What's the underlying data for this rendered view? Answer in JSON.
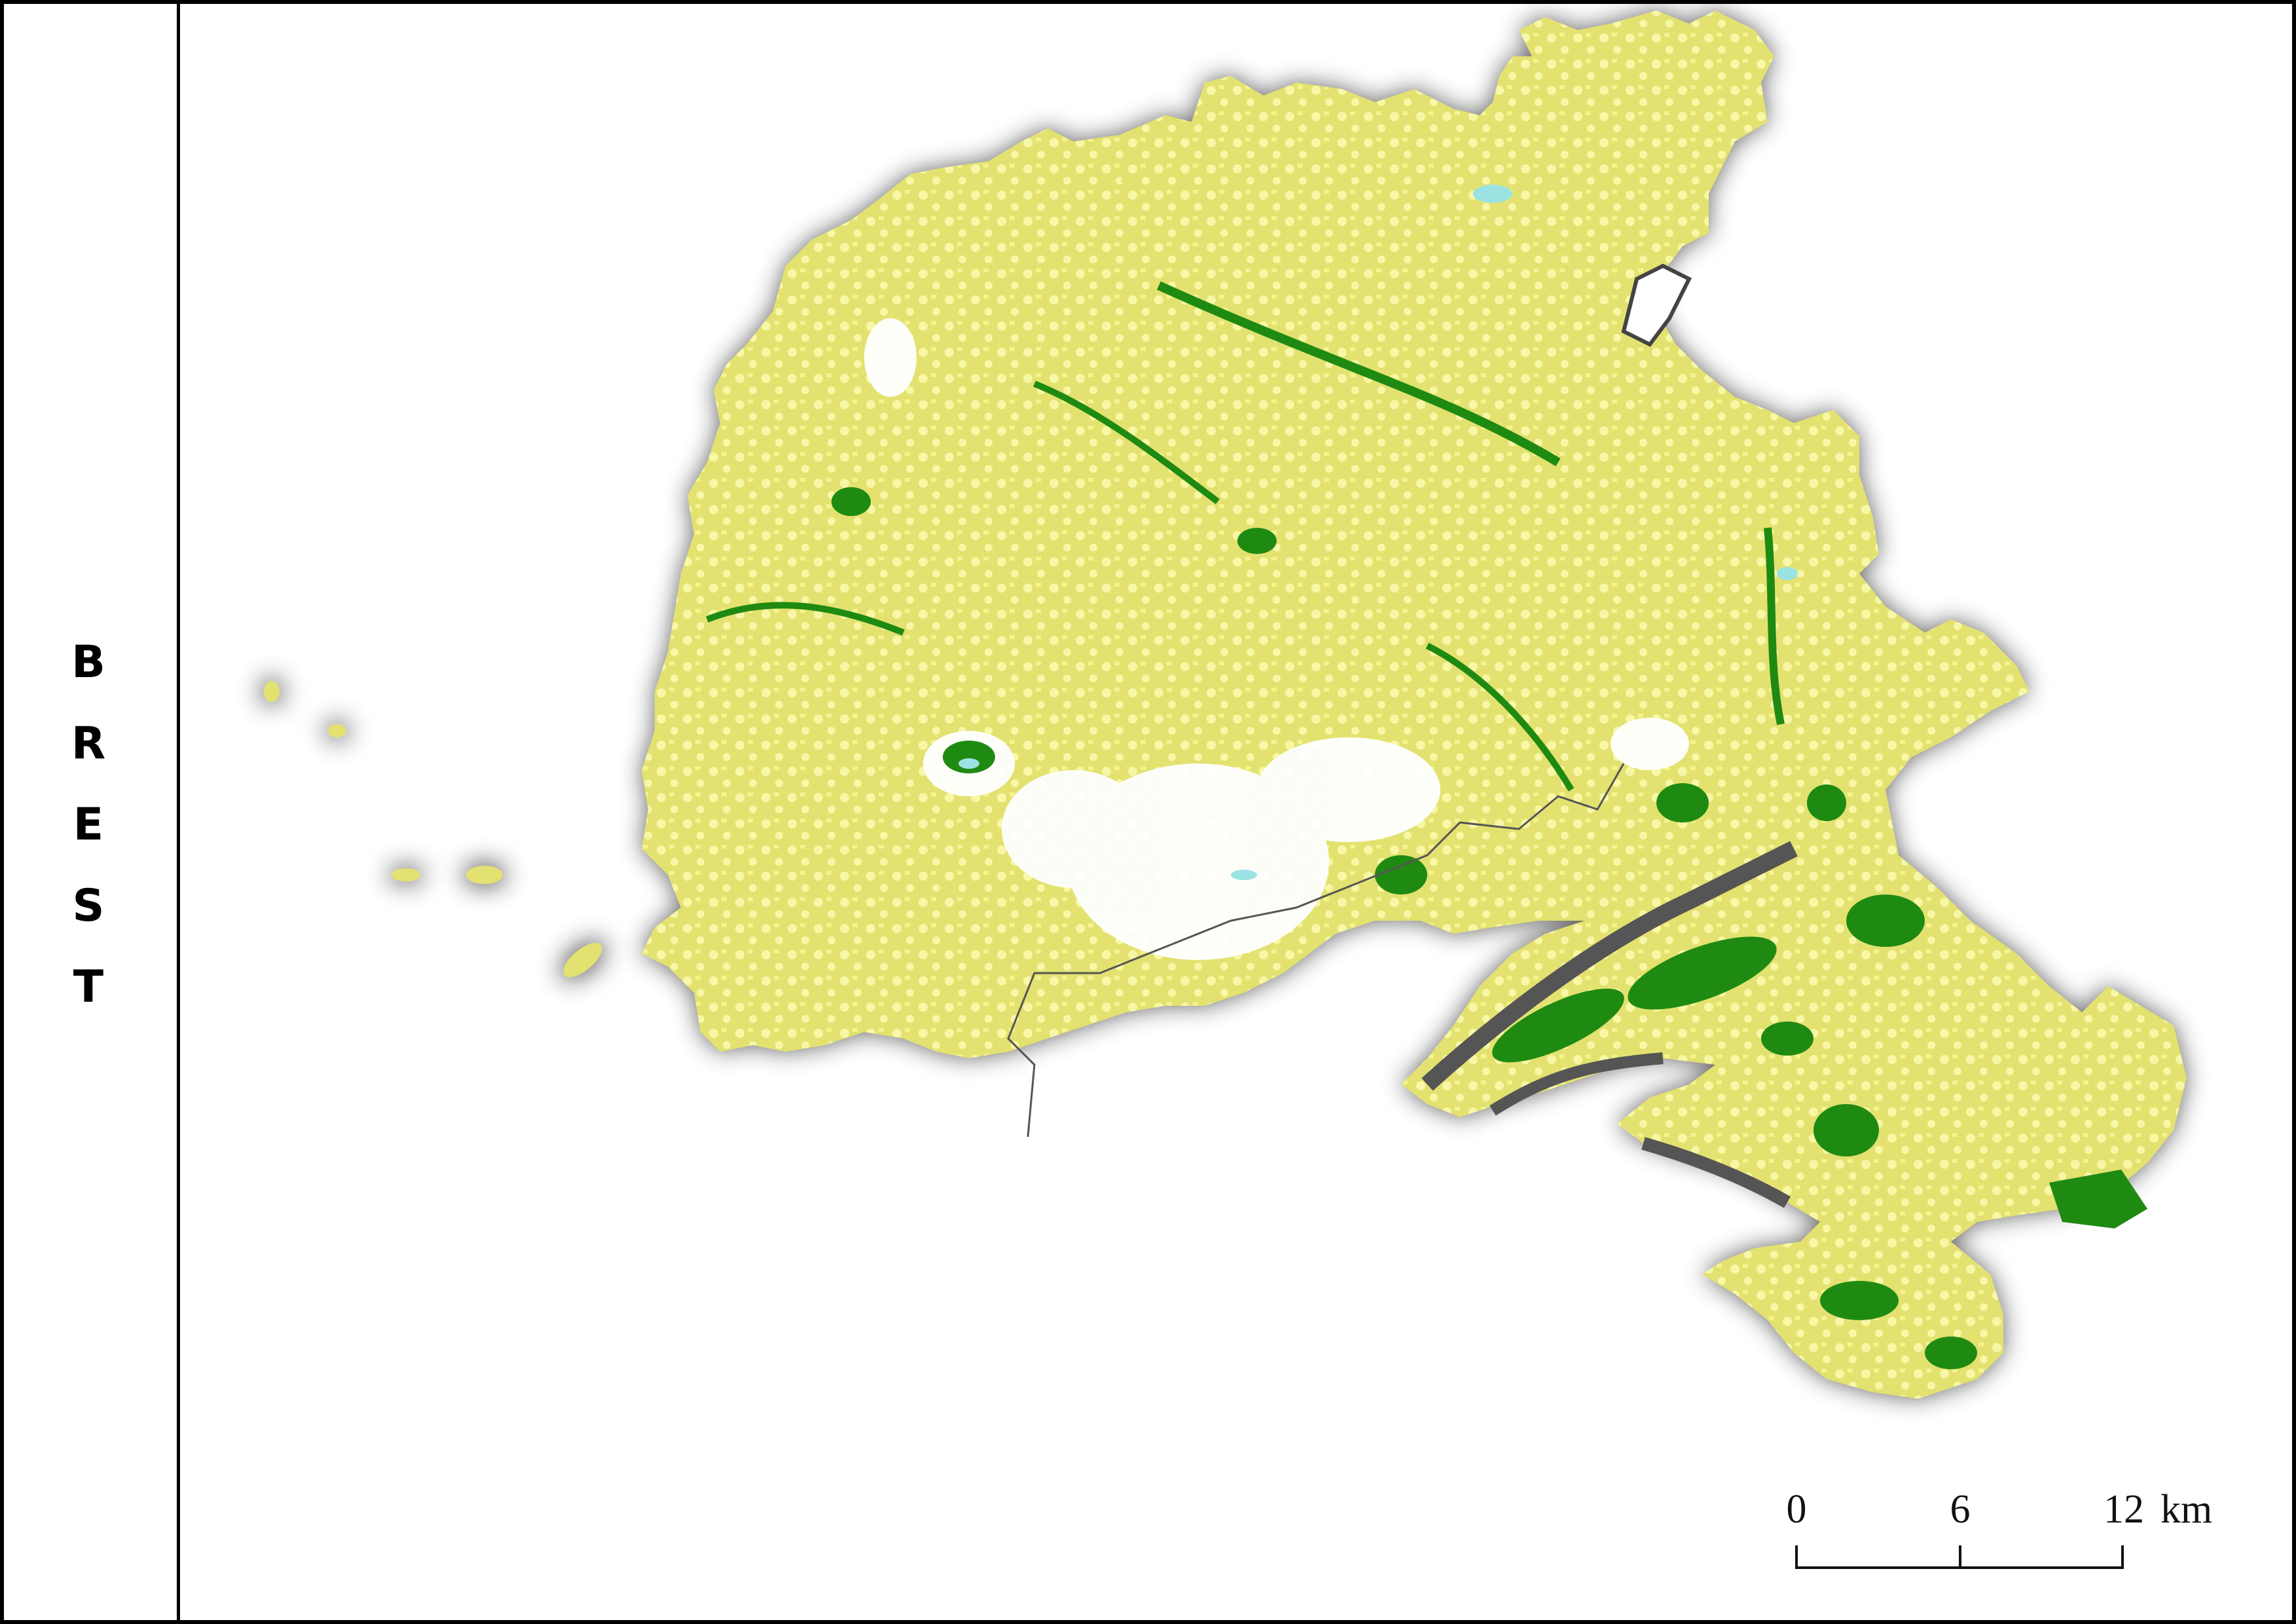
{
  "map": {
    "title_letters": [
      "B",
      "R",
      "E",
      "S",
      "T"
    ],
    "colors": {
      "cropland": "#e3e270",
      "grassland": "#f7f7a6",
      "forest": "#1f8a12",
      "water": "#9be3e3",
      "urban": "#ffffff",
      "shadow": "#6b6b6b",
      "frame": "#000000"
    }
  },
  "scale": {
    "ticks": [
      "0",
      "6",
      "12"
    ],
    "unit": "km"
  }
}
